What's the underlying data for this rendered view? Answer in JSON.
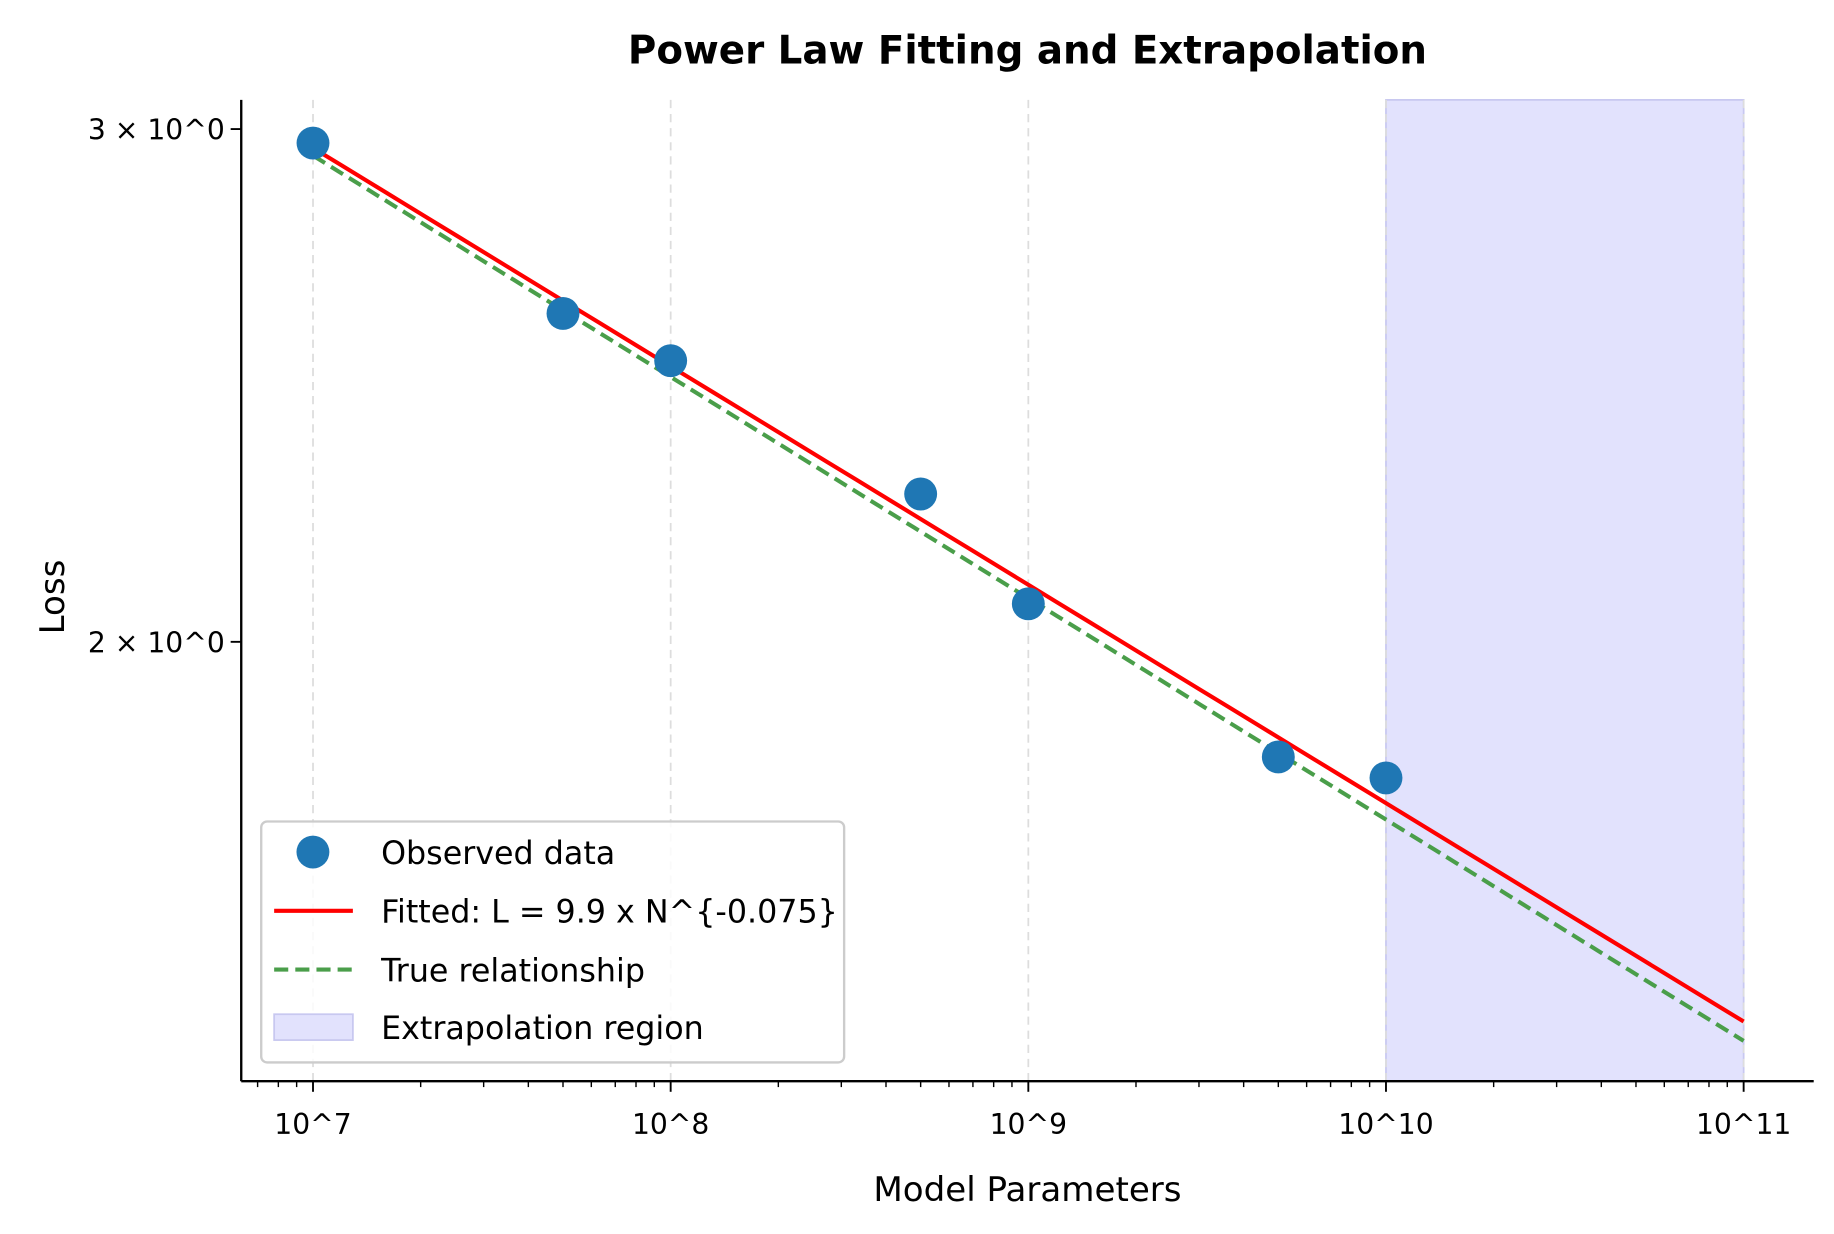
{
  "chart_data": {
    "type": "line",
    "title": "Power Law Fitting and Extrapolation",
    "xlabel": "Model Parameters",
    "ylabel": "Loss",
    "xscale": "log",
    "yscale": "log",
    "xlim": [
      6300000.0,
      157000000000.0
    ],
    "ylim": [
      1.413,
      3.07
    ],
    "grid": "x-major dashed",
    "x_ticks": [
      10000000.0,
      100000000.0,
      1000000000.0,
      10000000000.0,
      100000000000.0
    ],
    "x_tick_labels": [
      "10^7",
      "10^8",
      "10^9",
      "10^10",
      "10^11"
    ],
    "y_ticks": [
      3,
      2
    ],
    "y_tick_labels": [
      "3 × 10^0",
      "2 × 10^0"
    ],
    "legend_position": "lower-left",
    "series": [
      {
        "name": "Observed data",
        "kind": "scatter",
        "color": "#1f77b4",
        "x": [
          10000000.0,
          50000000.0,
          100000000.0,
          500000000.0,
          1000000000.0,
          5000000000.0,
          10000000000.0
        ],
        "y": [
          2.967,
          2.593,
          2.498,
          2.248,
          2.061,
          1.826,
          1.796
        ]
      },
      {
        "name": "Fitted: L = 9.9 x N^{-0.075}",
        "kind": "line",
        "color": "#ff0000",
        "coef": 9.9,
        "exponent": -0.075,
        "x_range": [
          10000000.0,
          100000000000.0
        ]
      },
      {
        "name": "True relationship",
        "kind": "dashed-line",
        "color": "#4a9e4a",
        "coef": 10.0,
        "exponent": -0.076,
        "x_range": [
          10000000.0,
          100000000000.0
        ]
      },
      {
        "name": "Extrapolation region",
        "kind": "span",
        "color": "#e2e2fd",
        "x_range": [
          10000000000.0,
          100000000000.0
        ]
      }
    ]
  }
}
